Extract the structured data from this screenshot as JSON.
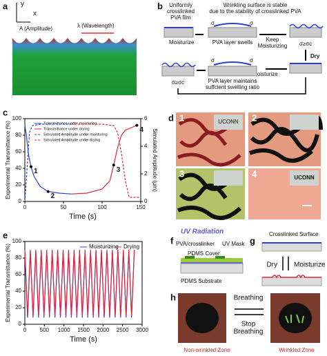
{
  "panels": {
    "a": {
      "label": "a",
      "y_axis": "y",
      "x_axis": "x",
      "amplitude": "A (Amplitude)",
      "wavelength": "λ (Wavelength)"
    },
    "b": {
      "label": "b",
      "film": [
        "Uniformly",
        "crosslinked",
        "PVA film"
      ],
      "stable": [
        "Wrinkling surface is stable",
        "due to the stability of crosslinked PVA"
      ],
      "moisturize": "Moisturize",
      "swells": "PVA layer swells",
      "keep": [
        "Keep",
        "Moisturizing"
      ],
      "sigma": "σ",
      "critical": "σ≥σc",
      "dry": "Dry",
      "remoisturize": "Re-Moisturize",
      "maintains": [
        "PVA layer maintains",
        "suffcient swelling ratio"
      ]
    },
    "d": {
      "label": "d",
      "numbers": [
        "1",
        "2",
        "3",
        "4"
      ],
      "logo": "UCONN"
    },
    "f": {
      "label": "f",
      "uv": "UV Radiation",
      "pva": "PVA/crosslinker",
      "cover": "PDMS Cover",
      "mask": "UV Mask",
      "substrate": "PDMS Substrate"
    },
    "g": {
      "label": "g",
      "surface": "Crosslinked Surface",
      "dry": "Dry",
      "moisturize": "Moisturize"
    },
    "h": {
      "label": "h",
      "breathing": "Breathing",
      "stop": [
        "Stop",
        "Breathing"
      ],
      "non_wrinkled": "Non-wrinkled Zone",
      "wrinkled": "Wrinkled Zone"
    }
  },
  "chart_data": [
    {
      "type": "line",
      "panel_label": "c",
      "x_label": "Time (s)",
      "y_label": "Experimental Transmittance (%)",
      "y2_label": "Simulated Amplitude (μm)",
      "xlim": [
        0,
        150
      ],
      "xticks": [
        0,
        50,
        100,
        150
      ],
      "ylim": [
        0,
        100
      ],
      "yticks": [
        0,
        20,
        40,
        60,
        80,
        100
      ],
      "y2lim": [
        0,
        6
      ],
      "y2ticks": [
        0,
        2,
        4,
        6
      ],
      "legend": "upper left",
      "series": [
        {
          "name": "Transmittance under moisturing",
          "color": "#2b3fd6",
          "x": [
            0,
            2,
            5,
            8,
            12,
            20,
            30,
            45,
            60
          ],
          "values": [
            92,
            80,
            55,
            42,
            30,
            18,
            12,
            10,
            9
          ]
        },
        {
          "name": "Transmittance under drying",
          "color": "#e0243a",
          "x": [
            60,
            80,
            100,
            110,
            115,
            120,
            125,
            130,
            140,
            145
          ],
          "values": [
            9,
            10,
            15,
            25,
            44,
            65,
            80,
            86,
            90,
            92
          ]
        },
        {
          "name": "Simulated Amplitude under moisturing",
          "color": "#2b3fd6",
          "dashed": true,
          "axis": "y2",
          "x": [
            0,
            3,
            6,
            10,
            20,
            60
          ],
          "values": [
            0,
            2.5,
            5,
            5.5,
            5.6,
            5.6
          ]
        },
        {
          "name": "Simulated Amplitude under drying",
          "color": "#e0243a",
          "dashed": true,
          "axis": "y2",
          "x": [
            60,
            100,
            115,
            120,
            125,
            130,
            135,
            150
          ],
          "values": [
            5.6,
            5.6,
            5.5,
            5,
            3.5,
            1.5,
            0.3,
            0.3
          ]
        }
      ],
      "annotations": [
        {
          "text": "1",
          "x": 8,
          "y": 42
        },
        {
          "text": "2",
          "x": 30,
          "y": 12
        },
        {
          "text": "3",
          "x": 115,
          "y": 44
        },
        {
          "text": "4",
          "x": 145,
          "y": 92
        }
      ]
    },
    {
      "type": "line",
      "panel_label": "e",
      "x_label": "Time (s)",
      "y_label": "Experimental Transmittance (%)",
      "xlim": [
        0,
        3000
      ],
      "xticks": [
        0,
        500,
        1000,
        1500,
        2000,
        2500,
        3000
      ],
      "ylim": [
        0,
        100
      ],
      "yticks": [
        0,
        20,
        40,
        60,
        80,
        100
      ],
      "legend": "upper right",
      "x": [
        0,
        70,
        140,
        210,
        280,
        350,
        420,
        490,
        560,
        630,
        700,
        770,
        840,
        910,
        980,
        1050,
        1120,
        1190,
        1260,
        1330,
        1400,
        1470,
        1540,
        1610,
        1680,
        1750,
        1820,
        1890,
        1960,
        2030,
        2100,
        2170,
        2240,
        2310,
        2380,
        2450,
        2520,
        2590,
        2660,
        2730,
        2800
      ],
      "series": [
        {
          "name": "Moisturizing",
          "color": "#2b3fd6",
          "values": [
            88,
            8,
            88,
            8,
            88,
            8,
            88,
            8,
            88,
            8,
            88,
            8,
            88,
            8,
            88,
            8,
            88,
            8,
            88,
            8,
            88,
            8,
            88,
            8,
            88,
            8,
            88,
            8,
            88,
            8,
            88,
            8,
            88,
            8,
            88,
            8,
            88,
            8,
            88,
            8,
            88
          ]
        },
        {
          "name": "Drying",
          "color": "#e0243a",
          "values": [
            90,
            10,
            90,
            10,
            90,
            10,
            90,
            10,
            90,
            10,
            90,
            10,
            90,
            10,
            90,
            10,
            90,
            10,
            90,
            10,
            90,
            10,
            90,
            10,
            90,
            10,
            90,
            10,
            90,
            10,
            90,
            10,
            90,
            10,
            90,
            10,
            90,
            10,
            90,
            10,
            90
          ]
        }
      ]
    }
  ]
}
